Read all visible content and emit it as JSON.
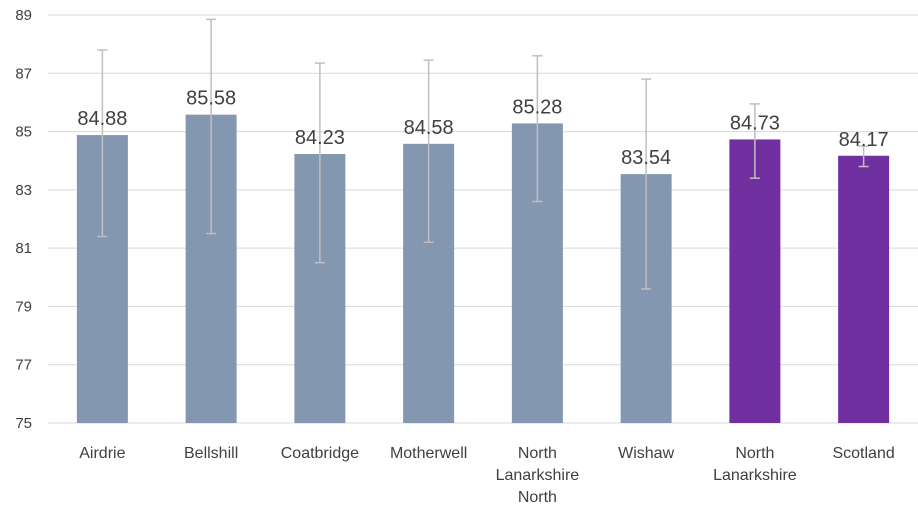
{
  "chart_data": {
    "type": "bar",
    "title": "",
    "xlabel": "",
    "ylabel": "",
    "ylim": [
      75,
      89
    ],
    "yticks": [
      75,
      77,
      79,
      81,
      83,
      85,
      87,
      89
    ],
    "grid": true,
    "legend": "none",
    "categories": [
      [
        "Airdrie"
      ],
      [
        "Bellshill"
      ],
      [
        "Coatbridge"
      ],
      [
        "Motherwell"
      ],
      [
        "North",
        "Lanarkshire",
        "North"
      ],
      [
        "Wishaw"
      ],
      [
        "North",
        "Lanarkshire"
      ],
      [
        "Scotland"
      ]
    ],
    "values": [
      84.88,
      85.58,
      84.23,
      84.58,
      85.28,
      83.54,
      84.73,
      84.17
    ],
    "value_labels": [
      "84.88",
      "85.58",
      "84.23",
      "84.58",
      "85.28",
      "83.54",
      "84.73",
      "84.17"
    ],
    "error_low": [
      81.4,
      81.5,
      80.5,
      81.2,
      82.6,
      79.6,
      83.4,
      83.8
    ],
    "error_high": [
      87.8,
      88.85,
      87.35,
      87.45,
      87.6,
      86.8,
      85.95,
      84.5
    ],
    "colors": [
      "#8497B0",
      "#8497B0",
      "#8497B0",
      "#8497B0",
      "#8497B0",
      "#8497B0",
      "#7030A0",
      "#7030A0"
    ],
    "gridline_color": "#D9D9D9",
    "errorbar_color": "#BFBFBF"
  }
}
